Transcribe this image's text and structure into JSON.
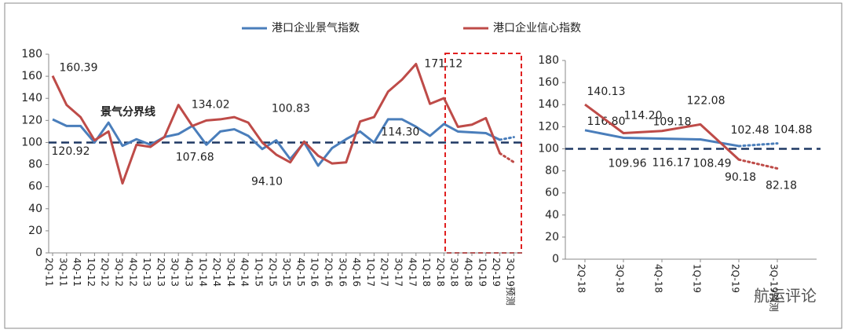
{
  "legend_items_note_free": null,
  "chart_data": [
    {
      "type": "line",
      "categories": [
        "2Q-11",
        "3Q-11",
        "4Q-11",
        "1Q-12",
        "2Q-12",
        "3Q-12",
        "4Q-12",
        "1Q-13",
        "2Q-13",
        "3Q-13",
        "4Q-13",
        "1Q-14",
        "2Q-14",
        "3Q-14",
        "4Q-14",
        "1Q-15",
        "2Q-15",
        "3Q-15",
        "4Q-15",
        "1Q-16",
        "2Q-16",
        "3Q-16",
        "4Q-16",
        "1Q-17",
        "2Q-17",
        "3Q-17",
        "4Q-17",
        "1Q-18",
        "2Q-18",
        "3Q-18",
        "4Q-18",
        "1Q-19",
        "2Q-19",
        "3Q-19预测"
      ],
      "series": [
        {
          "name": "港口企业景气指数",
          "color": "#4a7ebb",
          "values": [
            120.92,
            115,
            115,
            100,
            118,
            97,
            103,
            98,
            105,
            107.68,
            115,
            98,
            110,
            112,
            106,
            94.1,
            102,
            85,
            100,
            79,
            95,
            103,
            110,
            100,
            121,
            121,
            114.3,
            106,
            116.8,
            109.96,
            109.18,
            108.49,
            102.48,
            104.88
          ],
          "value_labels": [
            "120.92",
            null,
            null,
            null,
            null,
            null,
            null,
            null,
            null,
            "107.68",
            null,
            null,
            null,
            null,
            null,
            "94.10",
            null,
            null,
            null,
            null,
            null,
            null,
            null,
            null,
            null,
            null,
            "114.30",
            null,
            null,
            null,
            null,
            null,
            null,
            null
          ]
        },
        {
          "name": "港口企业信心指数",
          "color": "#be4b48",
          "values": [
            160.39,
            134,
            123,
            102,
            110,
            63,
            98,
            96,
            105,
            134.02,
            115,
            120,
            121,
            123,
            118,
            100,
            89,
            82,
            100.83,
            88,
            81,
            82,
            119,
            123,
            146,
            157,
            171.12,
            135,
            140.13,
            114.2,
            116.17,
            122.08,
            90.18,
            82.18
          ],
          "value_labels": [
            "160.39",
            null,
            null,
            null,
            null,
            null,
            null,
            null,
            null,
            "134.02",
            null,
            null,
            null,
            null,
            null,
            null,
            null,
            null,
            "100.83",
            null,
            null,
            null,
            null,
            null,
            null,
            null,
            "171.12",
            null,
            null,
            null,
            null,
            null,
            null,
            null
          ]
        }
      ],
      "ylim": [
        0,
        180
      ],
      "yticks": [
        0,
        20,
        40,
        60,
        80,
        100,
        120,
        140,
        160,
        180
      ],
      "threshold": 100,
      "threshold_label": "景气分界线",
      "forecast_last": true
    },
    {
      "type": "line",
      "categories": [
        "2Q-18",
        "3Q-18",
        "4Q-18",
        "1Q-19",
        "2Q-19",
        "3Q-19预测"
      ],
      "series": [
        {
          "color": "#4a7ebb",
          "values": [
            116.8,
            109.96,
            109.18,
            108.49,
            102.48,
            104.88
          ],
          "value_labels": [
            "116.80",
            "109.96",
            "109.18",
            "108.49",
            "102.48",
            "104.88"
          ]
        },
        {
          "color": "#be4b48",
          "values": [
            140.13,
            114.2,
            116.17,
            122.08,
            90.18,
            82.18
          ],
          "value_labels": [
            "140.13",
            "114.20",
            "116.17",
            "122.08",
            "90.18",
            "82.18"
          ]
        }
      ],
      "ylim": [
        0,
        180
      ],
      "yticks": [
        0,
        20,
        40,
        60,
        80,
        100,
        120,
        140,
        160,
        180
      ],
      "threshold": 100,
      "forecast_last": true
    }
  ],
  "watermark": "航运评论"
}
